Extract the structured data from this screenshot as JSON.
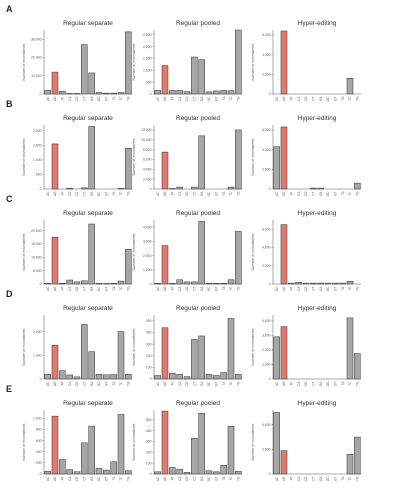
{
  "colors": {
    "highlight": "#e07a6e",
    "default": "#a6a6a6",
    "edge": "#222222"
  },
  "chart_data": [
    {
      "row": "A",
      "type": "bar",
      "title": "Regular separate",
      "ylabel": "Number of mismatches",
      "ylim": [
        0,
        35000
      ],
      "yticks": [
        0,
        10000,
        20000,
        30000
      ],
      "ytick_labels": [
        "0",
        "10,000",
        "20,000",
        "30,000"
      ],
      "categories": [
        "AC",
        "AG",
        "AT",
        "CA",
        "CG",
        "CT",
        "GA",
        "GC",
        "GT",
        "TA",
        "TC",
        "TG"
      ],
      "values": [
        2000,
        12000,
        1500,
        300,
        300,
        27000,
        11500,
        800,
        500,
        500,
        800,
        34000
      ],
      "highlight_index": 1
    },
    {
      "row": "A",
      "type": "bar",
      "title": "Regular pooled",
      "ylabel": "Number of mismatches",
      "ylim": [
        0,
        2700
      ],
      "yticks": [
        0,
        500,
        1000,
        1500,
        2000,
        2500
      ],
      "ytick_labels": [
        "0",
        "500",
        "1,000",
        "1,500",
        "2,000",
        "2,500"
      ],
      "categories": [
        "AC",
        "AG",
        "AT",
        "CA",
        "CG",
        "CT",
        "GA",
        "GC",
        "GT",
        "TA",
        "TC",
        "TG"
      ],
      "values": [
        150,
        1200,
        150,
        150,
        100,
        1560,
        1450,
        90,
        130,
        150,
        140,
        2700
      ],
      "highlight_index": 1
    },
    {
      "row": "A",
      "type": "bar",
      "title": "Hyper-editing",
      "ylabel": "Number of mismatches",
      "ylim": [
        0,
        6500
      ],
      "yticks": [
        0,
        2000,
        4000,
        6000
      ],
      "ytick_labels": [
        "0",
        "2,000",
        "4,000",
        "6,000"
      ],
      "categories": [
        "AC",
        "AG",
        "AT",
        "CA",
        "CG",
        "CT",
        "GA",
        "GC",
        "GT",
        "TA",
        "TC",
        "TG"
      ],
      "values": [
        0,
        6400,
        0,
        0,
        0,
        0,
        0,
        0,
        0,
        0,
        1600,
        0
      ],
      "highlight_index": 1
    },
    {
      "row": "B",
      "type": "bar",
      "title": "Regular separate",
      "ylabel": "Number of mismatches",
      "ylim": [
        0,
        2200
      ],
      "yticks": [
        0,
        500,
        1000,
        1500,
        2000
      ],
      "ytick_labels": [
        "0",
        "500",
        "1,000",
        "1,500",
        "2,000"
      ],
      "categories": [
        "AC",
        "AG",
        "AT",
        "CA",
        "CG",
        "CT",
        "GA",
        "GC",
        "GT",
        "TA",
        "TC",
        "TG"
      ],
      "values": [
        0,
        1550,
        0,
        30,
        0,
        40,
        2150,
        0,
        0,
        0,
        20,
        1400
      ],
      "highlight_index": 1
    },
    {
      "row": "B",
      "type": "bar",
      "title": "Regular pooled",
      "ylabel": "Number of mismatches",
      "ylim": [
        0,
        13000
      ],
      "yticks": [
        0,
        2000,
        4000,
        6000,
        8000,
        10000,
        12000
      ],
      "ytick_labels": [
        "0",
        "2,000",
        "4,000",
        "6,000",
        "8,000",
        "10,000",
        "12,000"
      ],
      "categories": [
        "AC",
        "AG",
        "AT",
        "CA",
        "CG",
        "CT",
        "GA",
        "GC",
        "GT",
        "TA",
        "TC",
        "TG"
      ],
      "values": [
        0,
        7500,
        100,
        400,
        0,
        400,
        10800,
        0,
        0,
        0,
        400,
        12000
      ],
      "highlight_index": 1
    },
    {
      "row": "B",
      "type": "bar",
      "title": "Hyper-editing",
      "ylabel": "Number of mismatches",
      "ylim": [
        0,
        6500
      ],
      "yticks": [
        0,
        2000,
        4000,
        6000
      ],
      "ytick_labels": [
        "0",
        "2,000",
        "4,000",
        "6,000"
      ],
      "categories": [
        "AC",
        "AG",
        "AT",
        "CA",
        "CG",
        "CT",
        "GA",
        "GC",
        "GT",
        "TA",
        "TC",
        "TG"
      ],
      "values": [
        4300,
        6300,
        0,
        0,
        0,
        100,
        100,
        0,
        0,
        0,
        0,
        600
      ],
      "highlight_index": 1
    },
    {
      "row": "C",
      "type": "bar",
      "title": "Regular separate",
      "ylabel": "Number of mismatches",
      "ylim": [
        0,
        24000
      ],
      "yticks": [
        0,
        5000,
        10000,
        15000,
        20000
      ],
      "ytick_labels": [
        "0",
        "5,000",
        "10,000",
        "15,000",
        "20,000"
      ],
      "categories": [
        "AC",
        "AG",
        "AT",
        "CA",
        "CG",
        "CT",
        "GA",
        "GC",
        "GT",
        "TA",
        "TC",
        "TG"
      ],
      "values": [
        300,
        17500,
        300,
        1500,
        800,
        1200,
        22500,
        300,
        200,
        300,
        1100,
        13000
      ],
      "highlight_index": 1
    },
    {
      "row": "C",
      "type": "bar",
      "title": "Regular pooled",
      "ylabel": "Number of mismatches",
      "ylim": [
        0,
        4500
      ],
      "yticks": [
        0,
        1000,
        2000,
        3000,
        4000
      ],
      "ytick_labels": [
        "0",
        "1,000",
        "2,000",
        "3,000",
        "4,000"
      ],
      "categories": [
        "AC",
        "AG",
        "AT",
        "CA",
        "CG",
        "CT",
        "GA",
        "GC",
        "GT",
        "TA",
        "TC",
        "TG"
      ],
      "values": [
        50,
        2700,
        50,
        300,
        150,
        150,
        4400,
        50,
        50,
        50,
        300,
        3700
      ],
      "highlight_index": 1
    },
    {
      "row": "C",
      "type": "bar",
      "title": "Hyper-editing",
      "ylabel": "Number of mismatches",
      "ylim": [
        0,
        7000
      ],
      "yticks": [
        0,
        2000,
        4000,
        6000
      ],
      "ytick_labels": [
        "0",
        "2,000",
        "4,000",
        "6,000"
      ],
      "categories": [
        "AC",
        "AG",
        "AT",
        "CA",
        "CG",
        "CT",
        "GA",
        "GC",
        "GT",
        "TA",
        "TC",
        "TG"
      ],
      "values": [
        0,
        6500,
        100,
        200,
        100,
        100,
        100,
        100,
        100,
        100,
        300,
        0
      ],
      "highlight_index": 1
    },
    {
      "row": "D",
      "type": "bar",
      "title": "Regular separate",
      "ylabel": "Number of mismatches",
      "ylim": [
        0,
        2700
      ],
      "yticks": [
        0,
        1000,
        2000
      ],
      "ytick_labels": [
        "0",
        "1,000",
        "2,000"
      ],
      "categories": [
        "AC",
        "AG",
        "AT",
        "CA",
        "CG",
        "CT",
        "GA",
        "GC",
        "GT",
        "TA",
        "TC",
        "TG"
      ],
      "values": [
        200,
        1420,
        350,
        170,
        90,
        2300,
        1150,
        200,
        180,
        190,
        2000,
        200
      ],
      "highlight_index": 1
    },
    {
      "row": "D",
      "type": "bar",
      "title": "Regular pooled",
      "ylabel": "Number of mismatches",
      "ylim": [
        0,
        550
      ],
      "yticks": [
        0,
        100,
        200,
        300,
        400,
        500
      ],
      "ytick_labels": [
        "0",
        "100",
        "200",
        "300",
        "400",
        "500"
      ],
      "categories": [
        "AC",
        "AG",
        "AT",
        "CA",
        "CG",
        "CT",
        "GA",
        "GC",
        "GT",
        "TA",
        "TC",
        "TG"
      ],
      "values": [
        30,
        440,
        50,
        40,
        20,
        340,
        370,
        40,
        30,
        55,
        520,
        40
      ],
      "highlight_index": 1
    },
    {
      "row": "D",
      "type": "bar",
      "title": "Hyper-editing",
      "ylabel": "Number of mismatches",
      "ylim": [
        0,
        4400
      ],
      "yticks": [
        0,
        1000,
        2000,
        3000,
        4000
      ],
      "ytick_labels": [
        "0",
        "1,000",
        "2,000",
        "3,000",
        "4,000"
      ],
      "categories": [
        "AC",
        "AG",
        "AT",
        "CA",
        "CG",
        "CT",
        "GA",
        "GC",
        "GT",
        "TA",
        "TC",
        "TG"
      ],
      "values": [
        2900,
        3600,
        0,
        0,
        0,
        0,
        0,
        0,
        0,
        0,
        4200,
        1750
      ],
      "highlight_index": 1
    },
    {
      "row": "E",
      "type": "bar",
      "title": "Regular separate",
      "ylabel": "Number of mismatches",
      "ylim": [
        0,
        1150
      ],
      "yticks": [
        0,
        200,
        400,
        600,
        800,
        1000
      ],
      "ytick_labels": [
        "0",
        "200",
        "400",
        "600",
        "800",
        "1,000"
      ],
      "categories": [
        "AC",
        "AG",
        "AT",
        "CA",
        "CG",
        "CT",
        "GA",
        "GC",
        "GT",
        "TA",
        "TC",
        "TG"
      ],
      "values": [
        50,
        1040,
        260,
        80,
        40,
        560,
        860,
        100,
        70,
        220,
        1070,
        60
      ],
      "highlight_index": 1
    },
    {
      "row": "E",
      "type": "bar",
      "title": "Regular pooled",
      "ylabel": "Number of mismatches",
      "ylim": [
        0,
        590
      ],
      "yticks": [
        0,
        100,
        200,
        300,
        400,
        500
      ],
      "ytick_labels": [
        "0",
        "100",
        "200",
        "300",
        "400",
        "500"
      ],
      "categories": [
        "AC",
        "AG",
        "AT",
        "CA",
        "CG",
        "CT",
        "GA",
        "GC",
        "GT",
        "TA",
        "TC",
        "TG"
      ],
      "values": [
        20,
        580,
        60,
        45,
        15,
        330,
        560,
        30,
        20,
        80,
        440,
        25
      ],
      "highlight_index": 1
    },
    {
      "row": "E",
      "type": "bar",
      "title": "Hyper-editing",
      "ylabel": "Number of mismatches",
      "ylim": [
        0,
        5200
      ],
      "yticks": [
        0,
        2000,
        4000
      ],
      "ytick_labels": [
        "0",
        "2,000",
        "4,000"
      ],
      "categories": [
        "AC",
        "AG",
        "AT",
        "CA",
        "CG",
        "CT",
        "GA",
        "GC",
        "GT",
        "TA",
        "TC",
        "TG"
      ],
      "values": [
        5000,
        1900,
        0,
        0,
        0,
        0,
        0,
        0,
        0,
        0,
        1600,
        3000
      ],
      "highlight_index": 1
    }
  ]
}
